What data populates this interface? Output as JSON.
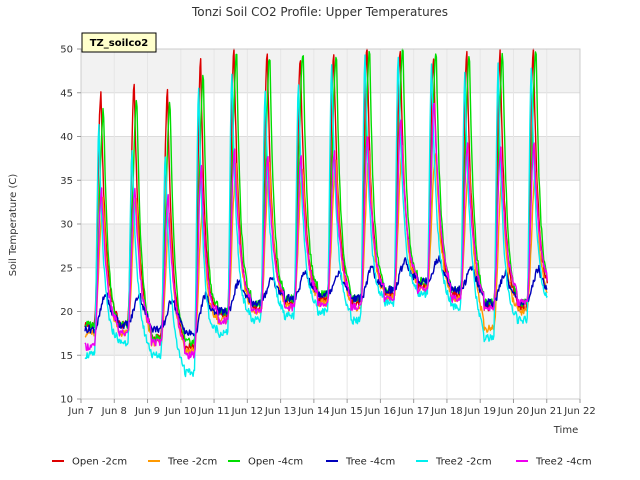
{
  "chart_data": {
    "type": "line",
    "title": "Tonzi Soil CO2 Profile: Upper Temperatures",
    "site_label": "TZ_soilco2",
    "xlabel": "Time",
    "ylabel": "Soil Temperature (C)",
    "xlim": [
      7,
      22
    ],
    "ylim": [
      10,
      50
    ],
    "x_ticks": [
      7,
      8,
      9,
      10,
      11,
      12,
      13,
      14,
      15,
      16,
      17,
      18,
      19,
      20,
      21,
      22
    ],
    "x_tick_labels": [
      "Jun 7",
      "Jun 8",
      "Jun 9",
      "Jun 10",
      "Jun 11",
      "Jun 12",
      "Jun 13",
      "Jun 14",
      "Jun 15",
      "Jun 16",
      "Jun 17",
      "Jun 18",
      "Jun 19",
      "Jun 20",
      "Jun 21",
      "Jun 22"
    ],
    "y_ticks": [
      10,
      15,
      20,
      25,
      30,
      35,
      40,
      45,
      50
    ],
    "y_tick_labels": [
      "10",
      "15",
      "20",
      "25",
      "30",
      "35",
      "40",
      "45",
      "50"
    ],
    "grid": true,
    "legend_position": "bottom",
    "days": [
      7,
      8,
      9,
      10,
      11,
      12,
      13,
      14,
      15,
      16,
      17,
      18,
      19,
      20,
      21
    ],
    "series": [
      {
        "name": "Open -2cm",
        "color": "#dd0000",
        "peak_hour": 0.48,
        "decay": 0.3,
        "min": [
          18.5,
          18.5,
          17,
          16,
          19.5,
          20.5,
          21,
          21.5,
          21,
          22,
          23,
          22,
          20.5,
          20.5,
          22
        ],
        "max": [
          45,
          46,
          45,
          48.5,
          50,
          49.5,
          49,
          49.5,
          50,
          50,
          49,
          49.5,
          49.5,
          50,
          48
        ]
      },
      {
        "name": "Tree -2cm",
        "color": "#ff9900",
        "peak_hour": 0.55,
        "decay": 0.35,
        "min": [
          17.5,
          17.5,
          16.5,
          15.5,
          19,
          20,
          20.5,
          21,
          20.5,
          21.5,
          22.5,
          21.5,
          18,
          20,
          21
        ],
        "max": [
          33,
          33,
          31,
          32,
          36.5,
          37,
          36.5,
          37,
          38,
          39,
          38,
          37,
          36,
          36,
          37
        ]
      },
      {
        "name": "Open -4cm",
        "color": "#00dd00",
        "peak_hour": 0.56,
        "decay": 0.3,
        "min": [
          18.5,
          18.5,
          17,
          16.5,
          20,
          21,
          21.5,
          22,
          21.5,
          22.5,
          23.5,
          22.5,
          21,
          21,
          22.5
        ],
        "max": [
          43,
          44,
          44,
          47,
          49.5,
          49.5,
          49.5,
          49.5,
          50,
          50,
          49.5,
          49.5,
          49.5,
          50,
          50
        ]
      },
      {
        "name": "Tree -4cm",
        "color": "#0000bb",
        "peak_hour": 0.65,
        "decay": 0.6,
        "min": [
          18,
          18.5,
          18,
          17.5,
          20,
          21,
          21.5,
          22,
          21.5,
          22.5,
          23.5,
          22.5,
          21,
          21,
          22.5
        ],
        "max": [
          22,
          22,
          21.5,
          22,
          23.5,
          24,
          24.5,
          24.5,
          25,
          26,
          26,
          25,
          24.5,
          25,
          25
        ]
      },
      {
        "name": "Tree2 -2cm",
        "color": "#00eeee",
        "peak_hour": 0.42,
        "decay": 0.28,
        "min": [
          15,
          16.5,
          15,
          13,
          17.5,
          19,
          19.5,
          20,
          19,
          21,
          22,
          20.5,
          17,
          19,
          20.5
        ],
        "max": [
          41,
          38,
          38,
          46,
          47,
          45,
          46,
          48,
          49.5,
          49.5,
          48,
          47,
          48,
          48,
          44
        ]
      },
      {
        "name": "Tree2 -4cm",
        "color": "#ee00ee",
        "peak_hour": 0.5,
        "decay": 0.4,
        "min": [
          16,
          17.5,
          16.5,
          15,
          19,
          20,
          20.5,
          21,
          20.5,
          21.5,
          22.5,
          21.5,
          20.5,
          21,
          22
        ],
        "max": [
          34,
          34,
          33,
          36.5,
          38.5,
          37.5,
          37.5,
          38,
          40,
          42,
          44,
          39,
          38.5,
          39,
          41
        ]
      }
    ]
  }
}
